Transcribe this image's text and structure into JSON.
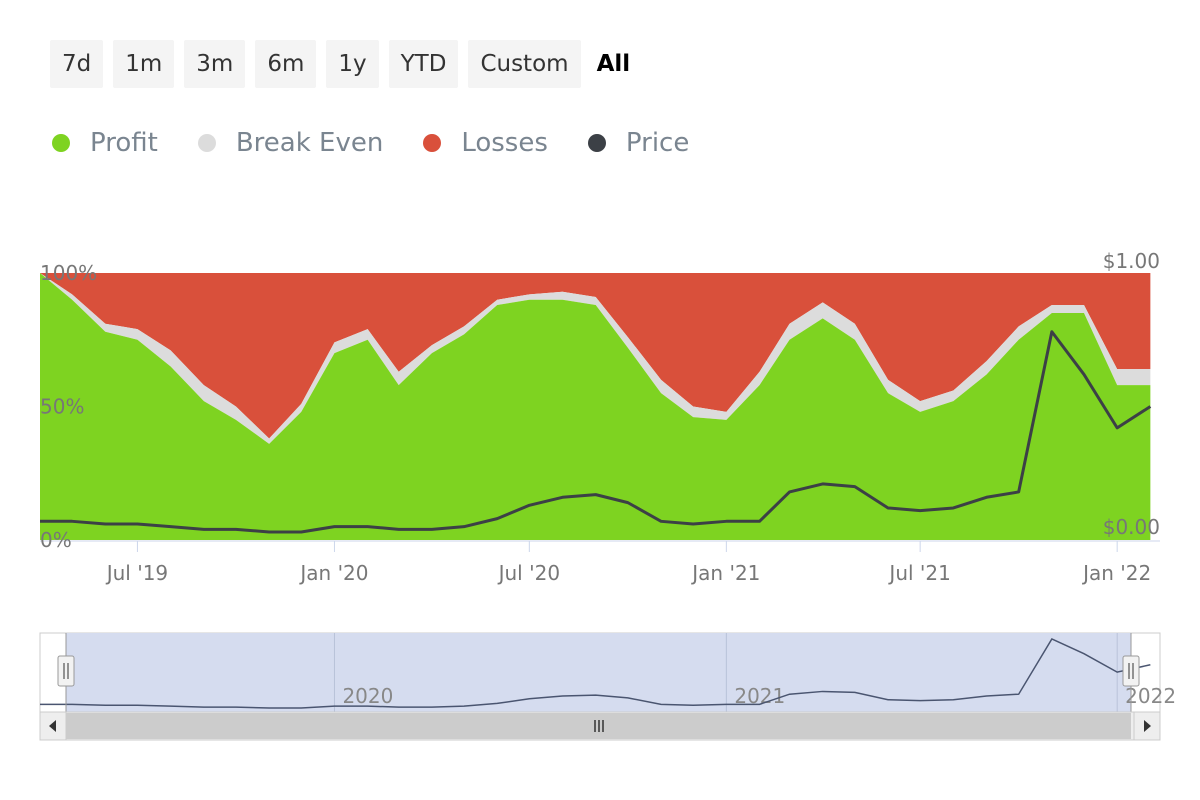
{
  "range_selector": {
    "buttons": [
      {
        "label": "7d"
      },
      {
        "label": "1m"
      },
      {
        "label": "3m"
      },
      {
        "label": "6m"
      },
      {
        "label": "1y"
      },
      {
        "label": "YTD"
      },
      {
        "label": "Custom"
      },
      {
        "label": "All"
      }
    ],
    "active": "All"
  },
  "legend": [
    {
      "label": "Profit",
      "color": "#7ed321"
    },
    {
      "label": "Break Even",
      "color": "#dcdcdc"
    },
    {
      "label": "Losses",
      "color": "#d9503b"
    },
    {
      "label": "Price",
      "color": "#3c4046"
    }
  ],
  "chart_data": {
    "type": "area",
    "stacking": "percent",
    "x_range": [
      "2019-04-01",
      "2022-02-10"
    ],
    "x_tick_labels": [
      "Jul '19",
      "Jan '20",
      "Jul '20",
      "Jan '21",
      "Jul '21",
      "Jan '22"
    ],
    "x_tick_dates": [
      "2019-07-01",
      "2020-01-01",
      "2020-07-01",
      "2021-01-01",
      "2021-07-01",
      "2022-01-01"
    ],
    "y_left": {
      "tick_labels": [
        "0%",
        "50%",
        "100%"
      ],
      "min": 0,
      "max": 100
    },
    "y_right": {
      "tick_labels": [
        "$0.00",
        "$1.00"
      ],
      "min": 0,
      "max": 1
    },
    "x": [
      "2019-04-01",
      "2019-05-01",
      "2019-06-01",
      "2019-07-01",
      "2019-08-01",
      "2019-09-01",
      "2019-10-01",
      "2019-11-01",
      "2019-12-01",
      "2020-01-01",
      "2020-02-01",
      "2020-03-01",
      "2020-04-01",
      "2020-05-01",
      "2020-06-01",
      "2020-07-01",
      "2020-08-01",
      "2020-09-01",
      "2020-10-01",
      "2020-11-01",
      "2020-12-01",
      "2021-01-01",
      "2021-02-01",
      "2021-03-01",
      "2021-04-01",
      "2021-05-01",
      "2021-06-01",
      "2021-07-01",
      "2021-08-01",
      "2021-09-01",
      "2021-10-01",
      "2021-11-01",
      "2021-12-01",
      "2022-01-01",
      "2022-02-01"
    ],
    "series": [
      {
        "name": "Profit",
        "values": [
          100,
          90,
          78,
          75,
          65,
          52,
          45,
          36,
          48,
          70,
          75,
          58,
          70,
          77,
          88,
          90,
          90,
          88,
          72,
          55,
          46,
          45,
          58,
          75,
          83,
          75,
          55,
          48,
          52,
          62,
          75,
          85,
          85,
          58,
          58
        ]
      },
      {
        "name": "Break Even",
        "values": [
          0,
          2,
          3,
          4,
          6,
          6,
          5,
          2,
          3,
          4,
          4,
          5,
          3,
          3,
          2,
          2,
          3,
          3,
          4,
          5,
          4,
          3,
          5,
          6,
          6,
          6,
          5,
          4,
          4,
          5,
          5,
          3,
          3,
          6,
          6
        ]
      },
      {
        "name": "Losses",
        "values": [
          0,
          8,
          19,
          21,
          29,
          42,
          50,
          62,
          49,
          26,
          21,
          37,
          27,
          20,
          10,
          8,
          7,
          9,
          24,
          40,
          50,
          52,
          37,
          19,
          11,
          19,
          40,
          48,
          44,
          33,
          20,
          12,
          12,
          36,
          36
        ]
      },
      {
        "name": "Price",
        "values": [
          0.07,
          0.07,
          0.06,
          0.06,
          0.05,
          0.04,
          0.04,
          0.03,
          0.03,
          0.05,
          0.05,
          0.04,
          0.04,
          0.05,
          0.08,
          0.13,
          0.16,
          0.17,
          0.14,
          0.07,
          0.06,
          0.07,
          0.07,
          0.18,
          0.21,
          0.2,
          0.12,
          0.11,
          0.12,
          0.16,
          0.18,
          0.78,
          0.62,
          0.42,
          0.5
        ]
      }
    ]
  },
  "navigator": {
    "labels": [
      "2020",
      "2021",
      "2022"
    ],
    "label_dates": [
      "2020-01-01",
      "2021-01-01",
      "2022-01-01"
    ],
    "scroll_left_icon": "arrow-left-icon",
    "scroll_right_icon": "arrow-right-icon",
    "scroll_grip_icon": "grip-icon"
  }
}
